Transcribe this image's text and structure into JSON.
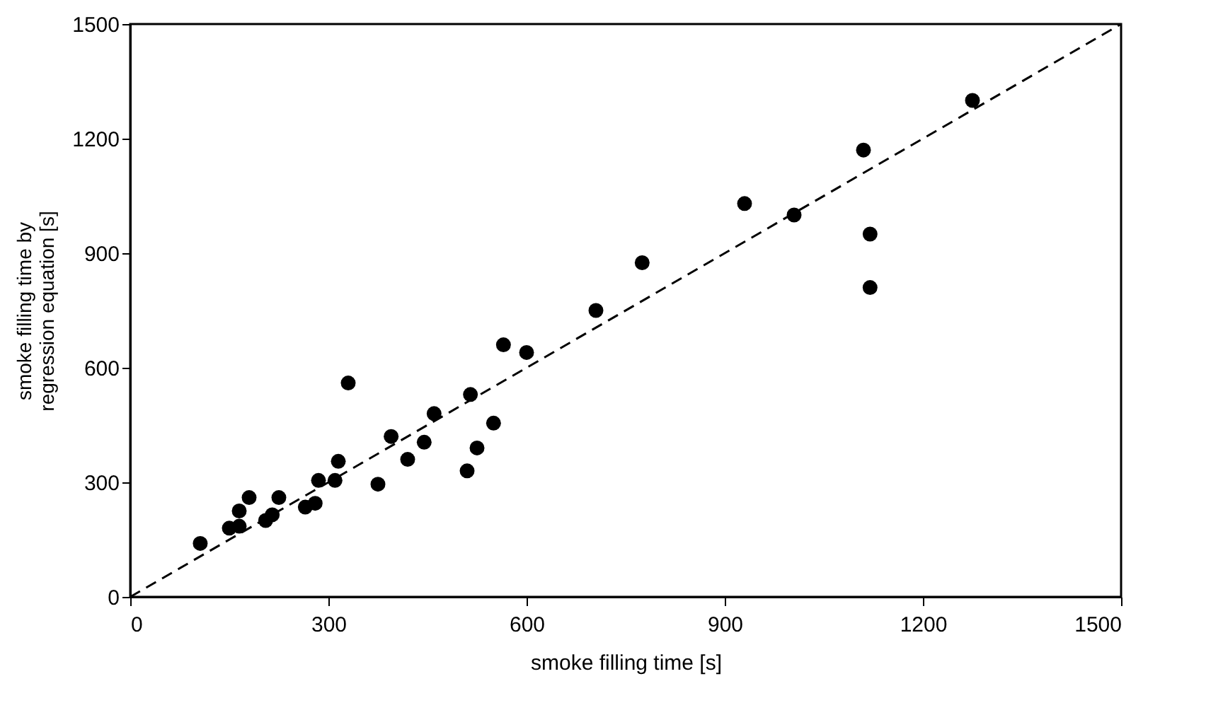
{
  "chart_data": {
    "type": "scatter",
    "xlabel": "smoke filling time [s]",
    "ylabel": "smoke filling time by regression equation [s]",
    "xlim": [
      0,
      1500
    ],
    "ylim": [
      0,
      1500
    ],
    "xticks": [
      0,
      300,
      600,
      900,
      1200,
      1500
    ],
    "yticks": [
      0,
      300,
      600,
      900,
      1200,
      1500
    ],
    "grid": false,
    "series": [
      {
        "color": "#000000",
        "marker": "circle",
        "x": [
          106,
          150,
          165,
          165,
          180,
          205,
          215,
          225,
          265,
          280,
          285,
          310,
          315,
          330,
          375,
          395,
          420,
          445,
          460,
          510,
          515,
          525,
          550,
          565,
          600,
          705,
          775,
          930,
          1005,
          1110,
          1120,
          1120,
          1275
        ],
        "values": [
          140,
          180,
          185,
          225,
          260,
          200,
          215,
          260,
          235,
          245,
          305,
          305,
          355,
          560,
          295,
          420,
          360,
          405,
          480,
          330,
          530,
          390,
          455,
          660,
          640,
          750,
          875,
          1030,
          1000,
          1170,
          950,
          810,
          1300
        ]
      },
      {
        "type": "line",
        "color": "#000000",
        "line_style": "dashed",
        "x": [
          0,
          1500
        ],
        "values": [
          0,
          1500
        ]
      }
    ]
  }
}
